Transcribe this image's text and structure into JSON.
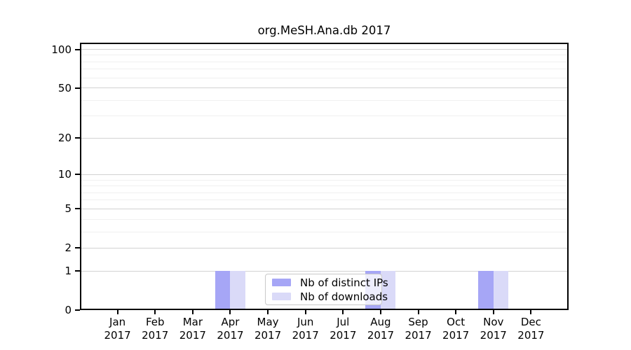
{
  "title": "org.MeSH.Ana.db 2017",
  "chart_data": {
    "type": "bar",
    "title": "org.MeSH.Ana.db 2017",
    "x_categories": [
      "Jan",
      "Feb",
      "Mar",
      "Apr",
      "May",
      "Jun",
      "Jul",
      "Aug",
      "Sep",
      "Oct",
      "Nov",
      "Dec"
    ],
    "x_year": "2017",
    "series": [
      {
        "name": "Nb of distinct IPs",
        "color": "#a6a6f6",
        "values": [
          0,
          0,
          0,
          1,
          0,
          0,
          0,
          1,
          0,
          0,
          1,
          0
        ]
      },
      {
        "name": "Nb of downloads",
        "color": "#dadaf8",
        "values": [
          0,
          0,
          0,
          1,
          0,
          0,
          0,
          1,
          0,
          0,
          1,
          0
        ]
      }
    ],
    "y_scale": "log1p",
    "ylim": [
      0,
      100
    ],
    "y_ticks": [
      0,
      1,
      2,
      5,
      10,
      20,
      50,
      100
    ],
    "y_minor_gridlines": [
      3,
      4,
      6,
      7,
      8,
      9,
      30,
      40,
      60,
      70,
      80,
      90
    ],
    "grid": true,
    "legend_position": "bottom-center",
    "colors": {
      "major_gridline": "#d2d2d2",
      "minor_gridline": "#f0f0f0",
      "axis": "#000000",
      "text": "#000000",
      "background": "#ffffff"
    }
  }
}
